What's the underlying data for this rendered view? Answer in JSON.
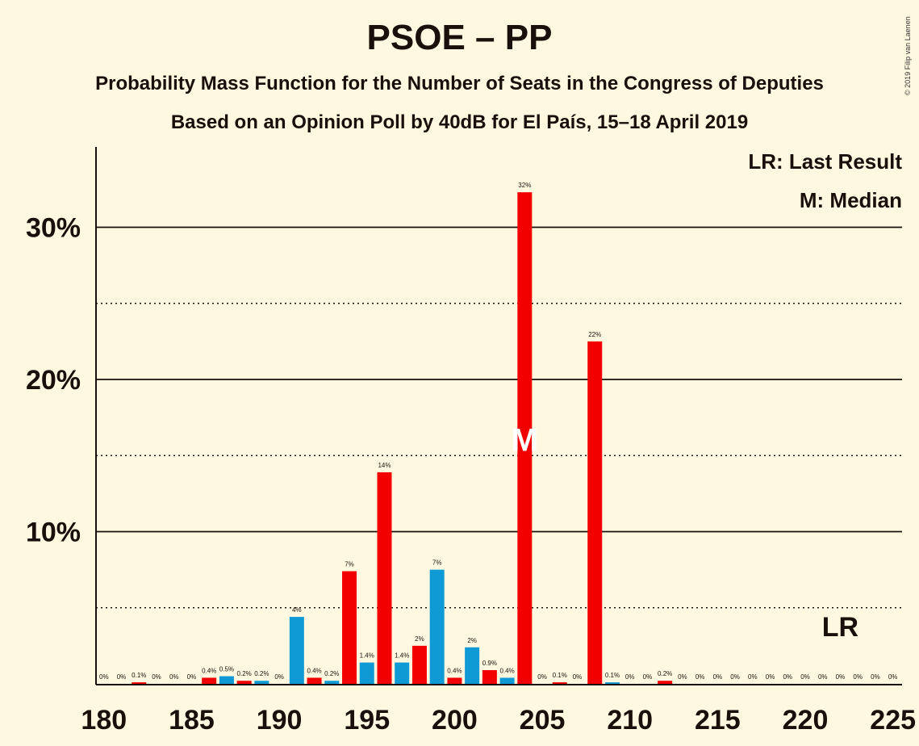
{
  "title": "PSOE – PP",
  "subtitle1": "Probability Mass Function for the Number of Seats in the Congress of Deputies",
  "subtitle2": "Based on an Opinion Poll by 40dB for El País, 15–18 April 2019",
  "copyright": "© 2019 Filip van Laenen",
  "legend": {
    "lr": "LR: Last Result",
    "median": "M: Median"
  },
  "markers": {
    "lr_label": "LR",
    "lr_seat": 222,
    "median_label": "M",
    "median_seat": 204
  },
  "colors": {
    "background": "#fff8e1",
    "psoe": "#f20000",
    "pp": "#0f9ad6",
    "text": "#1a0f0a"
  },
  "chart_data": {
    "type": "bar",
    "xlim": [
      180,
      225
    ],
    "ylim": [
      0,
      35
    ],
    "x_ticks": [
      180,
      185,
      190,
      195,
      200,
      205,
      210,
      215,
      220,
      225
    ],
    "y_ticks_major": [
      10,
      20,
      30
    ],
    "y_ticks_minor": [
      5,
      15,
      25
    ],
    "y_tick_labels": [
      "10%",
      "20%",
      "30%"
    ],
    "bars": [
      {
        "seat": 180,
        "value": 0,
        "label": "0%",
        "color": "red"
      },
      {
        "seat": 181,
        "value": 0,
        "label": "0%",
        "color": "red"
      },
      {
        "seat": 182,
        "value": 0.1,
        "label": "0.1%",
        "color": "red"
      },
      {
        "seat": 183,
        "value": 0,
        "label": "0%",
        "color": "red"
      },
      {
        "seat": 184,
        "value": 0,
        "label": "0%",
        "color": "red"
      },
      {
        "seat": 185,
        "value": 0,
        "label": "0%",
        "color": "red"
      },
      {
        "seat": 186,
        "value": 0.4,
        "label": "0.4%",
        "color": "red"
      },
      {
        "seat": 187,
        "value": 0.5,
        "label": "0.5%",
        "color": "blue"
      },
      {
        "seat": 188,
        "value": 0.2,
        "label": "0.2%",
        "color": "red"
      },
      {
        "seat": 189,
        "value": 0.2,
        "label": "0.2%",
        "color": "blue"
      },
      {
        "seat": 190,
        "value": 0,
        "label": "0%",
        "color": "red"
      },
      {
        "seat": 191,
        "value": 4.4,
        "label": "4%",
        "color": "blue"
      },
      {
        "seat": 192,
        "value": 0.4,
        "label": "0.4%",
        "color": "red"
      },
      {
        "seat": 193,
        "value": 0.2,
        "label": "0.2%",
        "color": "blue"
      },
      {
        "seat": 194,
        "value": 7.4,
        "label": "7%",
        "color": "red"
      },
      {
        "seat": 195,
        "value": 1.4,
        "label": "1.4%",
        "color": "blue"
      },
      {
        "seat": 196,
        "value": 13.9,
        "label": "14%",
        "color": "red"
      },
      {
        "seat": 197,
        "value": 1.4,
        "label": "1.4%",
        "color": "blue"
      },
      {
        "seat": 198,
        "value": 2.5,
        "label": "2%",
        "color": "red"
      },
      {
        "seat": 199,
        "value": 7.5,
        "label": "7%",
        "color": "blue"
      },
      {
        "seat": 200,
        "value": 0.4,
        "label": "0.4%",
        "color": "red"
      },
      {
        "seat": 201,
        "value": 2.4,
        "label": "2%",
        "color": "blue"
      },
      {
        "seat": 202,
        "value": 0.9,
        "label": "0.9%",
        "color": "red"
      },
      {
        "seat": 203,
        "value": 0.4,
        "label": "0.4%",
        "color": "blue"
      },
      {
        "seat": 204,
        "value": 32.3,
        "label": "32%",
        "color": "red"
      },
      {
        "seat": 205,
        "value": 0,
        "label": "0%",
        "color": "red"
      },
      {
        "seat": 206,
        "value": 0.1,
        "label": "0.1%",
        "color": "red"
      },
      {
        "seat": 207,
        "value": 0,
        "label": "0%",
        "color": "red"
      },
      {
        "seat": 208,
        "value": 22.5,
        "label": "22%",
        "color": "red"
      },
      {
        "seat": 209,
        "value": 0.1,
        "label": "0.1%",
        "color": "blue"
      },
      {
        "seat": 210,
        "value": 0,
        "label": "0%",
        "color": "red"
      },
      {
        "seat": 211,
        "value": 0,
        "label": "0%",
        "color": "red"
      },
      {
        "seat": 212,
        "value": 0.2,
        "label": "0.2%",
        "color": "red"
      },
      {
        "seat": 213,
        "value": 0,
        "label": "0%",
        "color": "red"
      },
      {
        "seat": 214,
        "value": 0,
        "label": "0%",
        "color": "red"
      },
      {
        "seat": 215,
        "value": 0,
        "label": "0%",
        "color": "red"
      },
      {
        "seat": 216,
        "value": 0,
        "label": "0%",
        "color": "red"
      },
      {
        "seat": 217,
        "value": 0,
        "label": "0%",
        "color": "red"
      },
      {
        "seat": 218,
        "value": 0,
        "label": "0%",
        "color": "red"
      },
      {
        "seat": 219,
        "value": 0,
        "label": "0%",
        "color": "red"
      },
      {
        "seat": 220,
        "value": 0,
        "label": "0%",
        "color": "red"
      },
      {
        "seat": 221,
        "value": 0,
        "label": "0%",
        "color": "red"
      },
      {
        "seat": 222,
        "value": 0,
        "label": "0%",
        "color": "red"
      },
      {
        "seat": 223,
        "value": 0,
        "label": "0%",
        "color": "red"
      },
      {
        "seat": 224,
        "value": 0,
        "label": "0%",
        "color": "red"
      },
      {
        "seat": 225,
        "value": 0,
        "label": "0%",
        "color": "red"
      }
    ]
  }
}
